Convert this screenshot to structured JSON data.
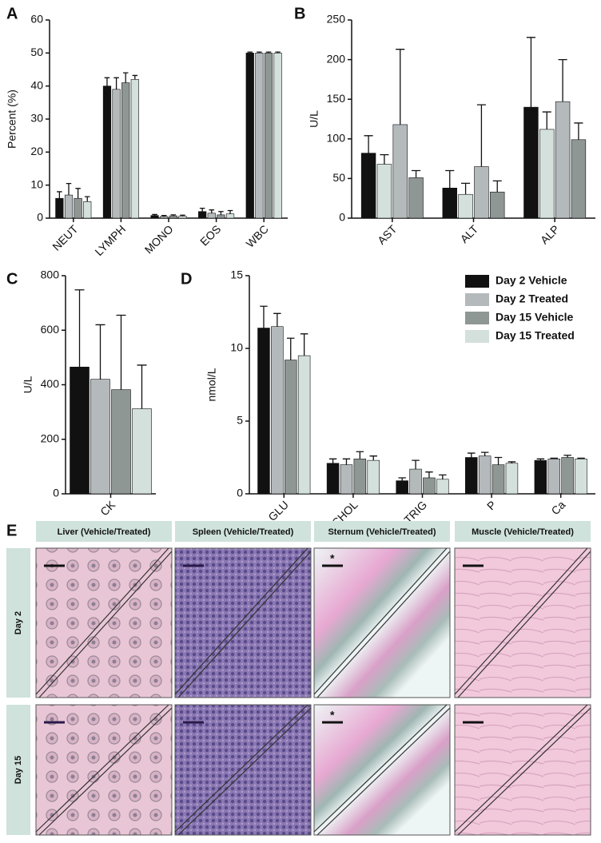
{
  "chart_data": [
    {
      "type": "bar",
      "panel": "A",
      "ylabel": "Percent (%)",
      "categories": [
        "NEUT",
        "LYMPH",
        "MONO",
        "EOS",
        "WBC"
      ],
      "ylim": [
        0,
        60
      ],
      "yticks": [
        0,
        10,
        20,
        30,
        40,
        50,
        60
      ],
      "series": [
        {
          "color": "#111111",
          "values": [
            6,
            40,
            0.8,
            2,
            50
          ],
          "errors": [
            2,
            2.5,
            0.3,
            1,
            0.3
          ]
        },
        {
          "color": "#b4b9bc",
          "values": [
            7,
            39,
            0.5,
            1.5,
            50
          ],
          "errors": [
            3.5,
            3.5,
            0.3,
            1,
            0.3
          ]
        },
        {
          "color": "#8f9794",
          "values": [
            6,
            41,
            0.7,
            1,
            50
          ],
          "errors": [
            3,
            3,
            0.3,
            1,
            0.3
          ]
        },
        {
          "color": "#d4e0dc",
          "values": [
            5,
            42,
            0.6,
            1.3,
            50
          ],
          "errors": [
            1.5,
            1.2,
            0.3,
            1,
            0.3
          ]
        }
      ]
    },
    {
      "type": "bar",
      "panel": "B",
      "ylabel": "U/L",
      "categories": [
        "AST",
        "ALT",
        "ALP"
      ],
      "ylim": [
        0,
        250
      ],
      "yticks": [
        0,
        50,
        100,
        150,
        200,
        250
      ],
      "series": [
        {
          "color": "#111111",
          "values": [
            82,
            38,
            140
          ],
          "errors": [
            22,
            22,
            88
          ]
        },
        {
          "color": "#d4e0dc",
          "values": [
            68,
            30,
            112
          ],
          "errors": [
            12,
            14,
            22
          ]
        },
        {
          "color": "#b4b9bc",
          "values": [
            118,
            65,
            147
          ],
          "errors": [
            95,
            78,
            53
          ]
        },
        {
          "color": "#8f9794",
          "values": [
            51,
            33,
            99
          ],
          "errors": [
            9,
            14,
            21
          ]
        }
      ]
    },
    {
      "type": "bar",
      "panel": "C",
      "ylabel": "U/L",
      "categories": [
        "CK"
      ],
      "ylim": [
        0,
        800
      ],
      "yticks": [
        0,
        200,
        400,
        600,
        800
      ],
      "series": [
        {
          "color": "#111111",
          "values": [
            465
          ],
          "errors": [
            283
          ]
        },
        {
          "color": "#b4b9bc",
          "values": [
            420
          ],
          "errors": [
            200
          ]
        },
        {
          "color": "#8f9794",
          "values": [
            382
          ],
          "errors": [
            273
          ]
        },
        {
          "color": "#d4e0dc",
          "values": [
            312
          ],
          "errors": [
            160
          ]
        }
      ]
    },
    {
      "type": "bar",
      "panel": "D",
      "ylabel": "nmol/L",
      "legend": "upper right",
      "categories": [
        "GLU",
        "CHOL",
        "TRIG",
        "P",
        "Ca"
      ],
      "ylim": [
        0,
        15
      ],
      "yticks": [
        0,
        5,
        10,
        15
      ],
      "series": [
        {
          "name": "Day 2 Vehicle",
          "color": "#111111",
          "values": [
            11.4,
            2.1,
            0.9,
            2.5,
            2.3
          ],
          "errors": [
            1.5,
            0.3,
            0.2,
            0.3,
            0.1
          ]
        },
        {
          "name": "Day 2 Treated",
          "color": "#b4b9bc",
          "values": [
            11.5,
            2.0,
            1.7,
            2.6,
            2.4
          ],
          "errors": [
            0.9,
            0.4,
            0.6,
            0.25,
            0.05
          ]
        },
        {
          "name": "Day 15 Vehicle",
          "color": "#8f9794",
          "values": [
            9.2,
            2.4,
            1.1,
            2.0,
            2.5
          ],
          "errors": [
            1.5,
            0.5,
            0.4,
            0.5,
            0.15
          ]
        },
        {
          "name": "Day 15 Treated",
          "color": "#d4e0dc",
          "values": [
            9.5,
            2.3,
            1.0,
            2.1,
            2.4
          ],
          "errors": [
            1.5,
            0.3,
            0.3,
            0.1,
            0.05
          ]
        }
      ]
    }
  ],
  "histology": {
    "panel": "E",
    "columns": [
      "Liver (Vehicle/Treated)",
      "Spleen (Vehicle/Treated)",
      "Sternum (Vehicle/Treated)",
      "Muscle (Vehicle/Treated)"
    ],
    "rows": [
      "Day 2",
      "Day 15"
    ],
    "marker": "*"
  }
}
